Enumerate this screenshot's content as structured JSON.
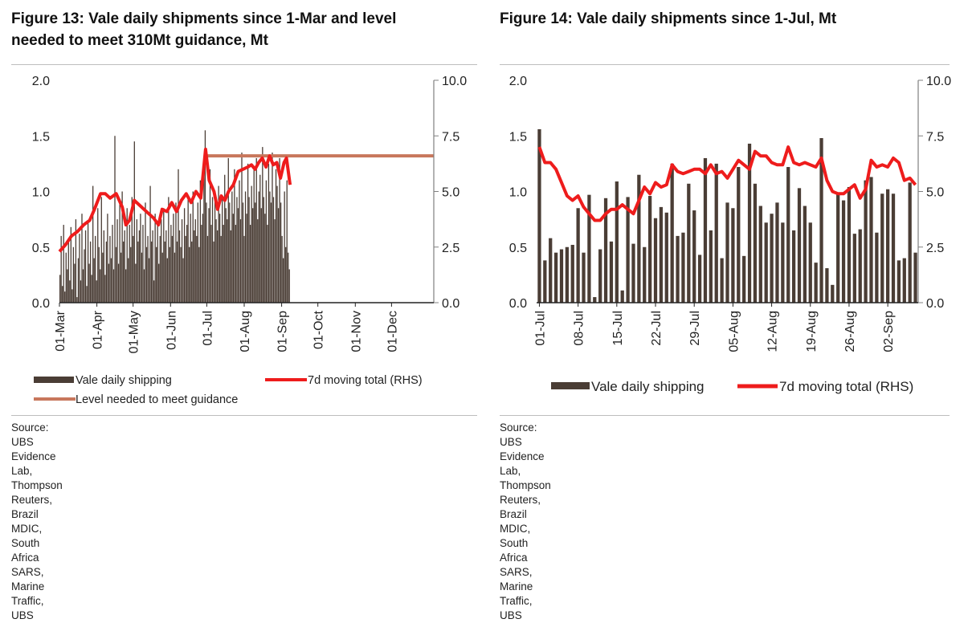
{
  "colors": {
    "bar": "#4a3d35",
    "line": "#ee1c1c",
    "level": "#c8775c",
    "axis": "#808080"
  },
  "fig13": {
    "title_line1": "Figure 13: Vale daily shipments since 1-Mar and level",
    "title_line2": "needed to meet 310Mt guidance, Mt",
    "source_line1": "Source:  UBS Evidence Lab, Thompson Reuters, Brazil MDIC, South Africa SARS,",
    "source_line2": "Marine Traffic, UBS",
    "chart_data": {
      "type": "bar+line",
      "x_ticks": [
        "01-Mar",
        "01-Apr",
        "01-May",
        "01-Jun",
        "01-Jul",
        "01-Aug",
        "01-Sep",
        "01-Oct",
        "01-Nov",
        "01-Dec"
      ],
      "y_left_ticks": [
        "2.0",
        "1.5",
        "1.0",
        "0.5",
        "0.0"
      ],
      "y_right_ticks": [
        "10.0",
        "7.5",
        "5.0",
        "2.5",
        "0.0"
      ],
      "ylim_left": [
        0,
        2.0
      ],
      "ylim_right": [
        0,
        10.0
      ],
      "days": 310,
      "data_days": 191,
      "bars": {
        "name": "Vale daily shipping",
        "values": [
          0.25,
          0.6,
          0.15,
          0.7,
          0.1,
          0.45,
          0.3,
          0.55,
          0.2,
          0.68,
          0.12,
          0.5,
          0.35,
          0.75,
          0.05,
          0.4,
          0.62,
          0.2,
          0.8,
          0.3,
          0.48,
          0.65,
          0.15,
          0.72,
          0.35,
          0.55,
          0.25,
          1.05,
          0.4,
          0.6,
          0.2,
          0.85,
          0.5,
          0.3,
          0.95,
          0.45,
          0.65,
          0.25,
          0.55,
          0.8,
          0.35,
          0.6,
          0.4,
          0.7,
          0.3,
          1.5,
          0.5,
          0.75,
          0.35,
          0.9,
          0.45,
          1.0,
          0.55,
          0.65,
          0.3,
          0.85,
          0.4,
          0.7,
          0.5,
          0.95,
          0.6,
          1.45,
          0.35,
          0.75,
          0.55,
          0.65,
          0.8,
          0.45,
          0.7,
          0.3,
          0.9,
          0.5,
          0.6,
          0.4,
          1.05,
          0.55,
          0.65,
          0.2,
          0.8,
          0.5,
          0.7,
          0.35,
          0.6,
          0.75,
          0.45,
          0.85,
          0.55,
          0.65,
          0.4,
          0.95,
          0.5,
          0.7,
          0.6,
          0.8,
          0.45,
          0.9,
          0.55,
          1.2,
          0.65,
          0.5,
          0.75,
          0.4,
          0.85,
          0.6,
          0.7,
          0.95,
          0.5,
          0.8,
          0.55,
          1.0,
          0.65,
          0.75,
          0.6,
          0.9,
          0.5,
          1.1,
          0.7,
          0.8,
          1.25,
          1.55,
          0.9,
          0.6,
          0.85,
          1.2,
          0.7,
          0.95,
          0.55,
          1.0,
          0.75,
          0.65,
          1.05,
          0.8,
          0.6,
          0.95,
          0.7,
          1.15,
          0.85,
          0.75,
          1.3,
          0.9,
          0.65,
          1.0,
          0.8,
          1.2,
          0.7,
          0.95,
          0.85,
          1.1,
          0.75,
          1.35,
          0.9,
          0.6,
          1.0,
          0.8,
          1.25,
          0.95,
          0.7,
          1.05,
          0.85,
          1.2,
          0.9,
          1.3,
          0.75,
          1.0,
          1.15,
          0.85,
          1.4,
          0.95,
          0.8,
          1.1,
          0.7,
          1.25,
          1.0,
          0.9,
          1.35,
          0.95,
          0.75,
          1.2,
          1.05,
          0.85,
          1.3,
          0.9,
          0.6,
          0.4,
          1.0,
          0.5,
          1.1,
          0.45,
          0.3
        ],
        "approx": true
      },
      "line": {
        "name": "7d moving total (RHS)",
        "points": [
          [
            0,
            2.3
          ],
          [
            5,
            2.6
          ],
          [
            10,
            3.0
          ],
          [
            15,
            3.2
          ],
          [
            20,
            3.5
          ],
          [
            25,
            3.7
          ],
          [
            29,
            4.2
          ],
          [
            34,
            4.9
          ],
          [
            38,
            4.9
          ],
          [
            42,
            4.7
          ],
          [
            47,
            4.9
          ],
          [
            52,
            4.3
          ],
          [
            55,
            3.5
          ],
          [
            58,
            3.7
          ],
          [
            62,
            4.6
          ],
          [
            66,
            4.4
          ],
          [
            70,
            4.2
          ],
          [
            74,
            4.0
          ],
          [
            78,
            3.8
          ],
          [
            82,
            3.5
          ],
          [
            85,
            4.2
          ],
          [
            89,
            4.1
          ],
          [
            93,
            4.5
          ],
          [
            97,
            4.1
          ],
          [
            101,
            4.6
          ],
          [
            105,
            4.9
          ],
          [
            109,
            4.5
          ],
          [
            113,
            5.0
          ],
          [
            117,
            4.7
          ],
          [
            121,
            6.9
          ],
          [
            124,
            5.5
          ],
          [
            128,
            5.0
          ],
          [
            131,
            4.2
          ],
          [
            134,
            4.8
          ],
          [
            137,
            4.6
          ],
          [
            140,
            5.0
          ],
          [
            144,
            5.3
          ],
          [
            148,
            5.9
          ],
          [
            152,
            6.0
          ],
          [
            156,
            6.1
          ],
          [
            159,
            6.2
          ],
          [
            162,
            6.0
          ],
          [
            165,
            6.3
          ],
          [
            168,
            6.5
          ],
          [
            171,
            6.1
          ],
          [
            174,
            6.6
          ],
          [
            177,
            6.2
          ],
          [
            180,
            6.3
          ],
          [
            183,
            5.6
          ],
          [
            186,
            6.3
          ],
          [
            188,
            6.5
          ],
          [
            191,
            5.3
          ]
        ]
      },
      "level": {
        "name": "Level needed to meet guidance",
        "value": 6.6,
        "start_day": 122
      },
      "legend": [
        "Vale daily shipping",
        "7d moving total (RHS)",
        "Level needed to meet guidance"
      ]
    }
  },
  "fig14": {
    "title": "Figure 14: Vale daily shipments since 1-Jul, Mt",
    "source_line1": "Source:  UBS Evidence Lab, Thompson Reuters, Brazil MDIC, South Africa SARS,",
    "source_line2": "Marine Traffic, UBS",
    "chart_data": {
      "type": "bar+line",
      "x_ticks": [
        "01-Jul",
        "08-Jul",
        "15-Jul",
        "22-Jul",
        "29-Jul",
        "05-Aug",
        "12-Aug",
        "19-Aug",
        "26-Aug",
        "02-Sep"
      ],
      "y_left_ticks": [
        "2.0",
        "1.5",
        "1.0",
        "0.5",
        "0.0"
      ],
      "y_right_ticks": [
        "10.0",
        "7.5",
        "5.0",
        "2.5",
        "0.0"
      ],
      "ylim_left": [
        0,
        2.0
      ],
      "ylim_right": [
        0,
        10.0
      ],
      "bars": {
        "name": "Vale daily shipping",
        "values": [
          1.56,
          0.38,
          0.58,
          0.45,
          0.48,
          0.5,
          0.52,
          0.85,
          0.45,
          0.97,
          0.05,
          0.48,
          0.94,
          0.55,
          1.09,
          0.11,
          0.95,
          0.53,
          1.15,
          0.5,
          0.96,
          0.76,
          0.86,
          0.81,
          1.25,
          0.6,
          0.63,
          1.07,
          0.83,
          0.43,
          1.3,
          0.65,
          1.25,
          0.4,
          0.9,
          0.85,
          1.22,
          0.42,
          1.43,
          1.07,
          0.87,
          0.72,
          0.8,
          0.9,
          0.72,
          1.22,
          0.65,
          1.03,
          0.87,
          0.72,
          0.36,
          1.48,
          0.31,
          0.16,
          0.98,
          0.92,
          1.04,
          0.62,
          0.66,
          1.1,
          1.13,
          0.63,
          0.98,
          1.02,
          0.98,
          0.38,
          0.4,
          1.08,
          0.45
        ]
      },
      "line": {
        "name": "7d moving total (RHS)",
        "values": [
          7.0,
          6.3,
          6.3,
          6.0,
          5.4,
          4.8,
          4.6,
          4.8,
          4.3,
          4.0,
          3.7,
          3.7,
          4.0,
          4.2,
          4.2,
          4.4,
          4.2,
          4.0,
          4.6,
          5.2,
          4.9,
          5.4,
          5.2,
          5.3,
          6.2,
          5.9,
          5.8,
          5.9,
          6.0,
          6.0,
          5.8,
          6.2,
          5.8,
          5.9,
          5.6,
          6.0,
          6.4,
          6.2,
          6.0,
          6.8,
          6.6,
          6.6,
          6.3,
          6.2,
          6.2,
          7.0,
          6.3,
          6.2,
          6.3,
          6.2,
          6.1,
          6.5,
          5.5,
          5.0,
          4.9,
          4.9,
          5.1,
          5.3,
          4.7,
          5.1,
          6.4,
          6.1,
          6.2,
          6.1,
          6.5,
          6.3,
          5.5,
          5.6,
          5.3
        ]
      },
      "legend": [
        "Vale daily shipping",
        "7d moving total (RHS)"
      ]
    }
  }
}
